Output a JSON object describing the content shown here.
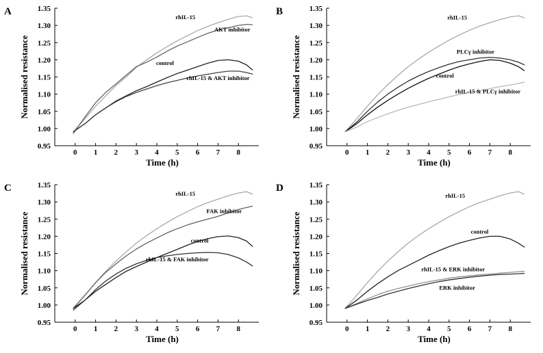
{
  "chart_data": [
    {
      "type": "line",
      "panel": "A",
      "xlabel": "Time (h)",
      "ylabel": "Normalised resistance",
      "xticks": [
        0,
        1,
        2,
        3,
        4,
        5,
        6,
        7,
        8
      ],
      "yticks": [
        "0.95",
        "1.00",
        "1.05",
        "1.10",
        "1.15",
        "1.20",
        "1.25",
        "1.30",
        "1.35"
      ],
      "xlim": [
        -1,
        9
      ],
      "ylim": [
        0.95,
        1.35
      ],
      "grid": false,
      "series": [
        {
          "name": "rhIL-15",
          "color": "#a8a8a8",
          "label_at": [
            5.4,
            1.318
          ],
          "x": [
            -0.1,
            0.5,
            1,
            1.5,
            2,
            2.5,
            3,
            3.5,
            4,
            4.5,
            5,
            5.5,
            6,
            6.5,
            7,
            7.5,
            8,
            8.4,
            8.7
          ],
          "y": [
            0.99,
            1.03,
            1.065,
            1.095,
            1.125,
            1.15,
            1.178,
            1.2,
            1.22,
            1.238,
            1.255,
            1.27,
            1.285,
            1.297,
            1.308,
            1.318,
            1.326,
            1.328,
            1.322
          ]
        },
        {
          "name": "AKT inhibitor",
          "color": "#606060",
          "label_at": [
            7.7,
            1.282
          ],
          "x": [
            -0.1,
            0.5,
            1,
            1.5,
            2,
            2.5,
            3,
            3.5,
            4,
            4.5,
            5,
            5.5,
            6,
            6.5,
            7,
            7.5,
            8,
            8.4,
            8.7
          ],
          "y": [
            0.985,
            1.035,
            1.075,
            1.105,
            1.13,
            1.155,
            1.18,
            1.193,
            1.208,
            1.225,
            1.24,
            1.252,
            1.265,
            1.277,
            1.287,
            1.293,
            1.3,
            1.303,
            1.302
          ]
        },
        {
          "name": "control",
          "color": "#202020",
          "label_at": [
            4.4,
            1.185
          ],
          "x": [
            -0.1,
            0.5,
            1,
            1.5,
            2,
            2.5,
            3,
            3.5,
            4,
            4.5,
            5,
            5.5,
            6,
            6.5,
            7,
            7.5,
            8,
            8.4,
            8.7
          ],
          "y": [
            0.99,
            1.015,
            1.04,
            1.06,
            1.08,
            1.095,
            1.11,
            1.122,
            1.135,
            1.148,
            1.16,
            1.17,
            1.18,
            1.19,
            1.198,
            1.2,
            1.196,
            1.185,
            1.17
          ]
        },
        {
          "name": "rhIL-15 & AKT inhibitor",
          "color": "#404040",
          "label_at": [
            7.0,
            1.141
          ],
          "x": [
            -0.1,
            0.5,
            1,
            1.5,
            2,
            2.5,
            3,
            3.5,
            4,
            4.5,
            5,
            5.5,
            6,
            6.5,
            7,
            7.5,
            8,
            8.4,
            8.7
          ],
          "y": [
            0.99,
            1.015,
            1.04,
            1.06,
            1.078,
            1.093,
            1.105,
            1.115,
            1.125,
            1.133,
            1.14,
            1.147,
            1.153,
            1.158,
            1.163,
            1.167,
            1.167,
            1.163,
            1.158
          ]
        }
      ]
    },
    {
      "type": "line",
      "panel": "B",
      "xlabel": "Time (h)",
      "ylabel": "Normalised resistance",
      "xticks": [
        0,
        1,
        2,
        3,
        4,
        5,
        6,
        7,
        8
      ],
      "yticks": [
        "0.95",
        "1.00",
        "1.05",
        "1.10",
        "1.15",
        "1.20",
        "1.25",
        "1.30",
        "1.35"
      ],
      "xlim": [
        -1,
        9
      ],
      "ylim": [
        0.95,
        1.35
      ],
      "grid": false,
      "series": [
        {
          "name": "rhIL-15",
          "color": "#a8a8a8",
          "label_at": [
            5.4,
            1.317
          ],
          "x": [
            -0.1,
            0.5,
            1,
            1.5,
            2,
            2.5,
            3,
            3.5,
            4,
            4.5,
            5,
            5.5,
            6,
            6.5,
            7,
            7.5,
            8,
            8.4,
            8.7
          ],
          "y": [
            0.99,
            1.03,
            1.065,
            1.098,
            1.128,
            1.155,
            1.18,
            1.202,
            1.222,
            1.24,
            1.257,
            1.272,
            1.286,
            1.298,
            1.308,
            1.317,
            1.325,
            1.328,
            1.322
          ]
        },
        {
          "name": "PLCγ inhibitor",
          "color": "#303030",
          "label_at": [
            6.3,
            1.218
          ],
          "x": [
            -0.1,
            0.5,
            1,
            1.5,
            2,
            2.5,
            3,
            3.5,
            4,
            4.5,
            5,
            5.5,
            6,
            6.5,
            7,
            7.5,
            8,
            8.4,
            8.7
          ],
          "y": [
            0.99,
            1.02,
            1.05,
            1.077,
            1.1,
            1.12,
            1.138,
            1.153,
            1.166,
            1.177,
            1.187,
            1.195,
            1.2,
            1.205,
            1.207,
            1.205,
            1.2,
            1.193,
            1.185
          ]
        },
        {
          "name": "control",
          "color": "#101010",
          "label_at": [
            4.8,
            1.148
          ],
          "x": [
            -0.1,
            0.5,
            1,
            1.5,
            2,
            2.5,
            3,
            3.5,
            4,
            4.5,
            5,
            5.5,
            6,
            6.5,
            7,
            7.5,
            8,
            8.4,
            8.7
          ],
          "y": [
            0.99,
            1.015,
            1.04,
            1.062,
            1.082,
            1.1,
            1.117,
            1.132,
            1.146,
            1.158,
            1.17,
            1.18,
            1.188,
            1.195,
            1.2,
            1.198,
            1.19,
            1.18,
            1.168
          ]
        },
        {
          "name": "rhIL-15 & PLCγ inhibitor",
          "color": "#b8b8b8",
          "label_at": [
            6.9,
            1.102
          ],
          "x": [
            -0.1,
            0.5,
            1,
            1.5,
            2,
            2.5,
            3,
            3.5,
            4,
            4.5,
            5,
            5.5,
            6,
            6.5,
            7,
            7.5,
            8,
            8.4,
            8.7
          ],
          "y": [
            0.99,
            1.005,
            1.02,
            1.032,
            1.043,
            1.053,
            1.062,
            1.07,
            1.078,
            1.085,
            1.092,
            1.099,
            1.105,
            1.11,
            1.116,
            1.122,
            1.127,
            1.131,
            1.135
          ]
        }
      ]
    },
    {
      "type": "line",
      "panel": "C",
      "xlabel": "Time (h)",
      "ylabel": "Normalised resistance",
      "xticks": [
        0,
        1,
        2,
        3,
        4,
        5,
        6,
        7,
        8
      ],
      "yticks": [
        "0.95",
        "1.00",
        "1.05",
        "1.10",
        "1.15",
        "1.20",
        "1.25",
        "1.30",
        "1.35"
      ],
      "xlim": [
        -1,
        9
      ],
      "ylim": [
        0.95,
        1.35
      ],
      "grid": false,
      "series": [
        {
          "name": "rhIL-15",
          "color": "#a8a8a8",
          "label_at": [
            5.4,
            1.318
          ],
          "x": [
            -0.1,
            0.5,
            1,
            1.5,
            2,
            2.5,
            3,
            3.5,
            4,
            4.5,
            5,
            5.5,
            6,
            6.5,
            7,
            7.5,
            8,
            8.4,
            8.7
          ],
          "y": [
            0.99,
            1.03,
            1.065,
            1.098,
            1.128,
            1.155,
            1.18,
            1.202,
            1.222,
            1.24,
            1.257,
            1.272,
            1.286,
            1.298,
            1.308,
            1.318,
            1.326,
            1.33,
            1.322
          ]
        },
        {
          "name": "FAK inhibitor",
          "color": "#606060",
          "label_at": [
            7.3,
            1.267
          ],
          "x": [
            -0.1,
            0.5,
            1,
            1.5,
            2,
            2.5,
            3,
            3.5,
            4,
            4.5,
            5,
            5.5,
            6,
            6.5,
            7,
            7.5,
            8,
            8.4,
            8.7
          ],
          "y": [
            0.99,
            1.03,
            1.065,
            1.095,
            1.12,
            1.143,
            1.163,
            1.18,
            1.195,
            1.21,
            1.222,
            1.233,
            1.242,
            1.25,
            1.258,
            1.268,
            1.278,
            1.284,
            1.288
          ]
        },
        {
          "name": "control",
          "color": "#202020",
          "label_at": [
            6.1,
            1.182
          ],
          "x": [
            -0.1,
            0.5,
            1,
            1.5,
            2,
            2.5,
            3,
            3.5,
            4,
            4.5,
            5,
            5.5,
            6,
            6.5,
            7,
            7.5,
            8,
            8.4,
            8.7
          ],
          "y": [
            0.99,
            1.015,
            1.04,
            1.06,
            1.08,
            1.098,
            1.112,
            1.125,
            1.138,
            1.15,
            1.162,
            1.174,
            1.185,
            1.193,
            1.199,
            1.201,
            1.196,
            1.186,
            1.17
          ]
        },
        {
          "name": "rhIL-15 & FAK inhibitor",
          "color": "#303030",
          "label_at": [
            5.0,
            1.127
          ],
          "x": [
            -0.1,
            0.5,
            1,
            1.5,
            2,
            2.5,
            3,
            3.5,
            4,
            4.5,
            5,
            5.5,
            6,
            6.5,
            7,
            7.5,
            8,
            8.4,
            8.7
          ],
          "y": [
            0.985,
            1.015,
            1.045,
            1.07,
            1.09,
            1.107,
            1.12,
            1.13,
            1.138,
            1.143,
            1.147,
            1.15,
            1.152,
            1.153,
            1.152,
            1.147,
            1.137,
            1.125,
            1.113
          ]
        }
      ]
    },
    {
      "type": "line",
      "panel": "D",
      "xlabel": "Time (h)",
      "ylabel": "Normalised resistance",
      "xticks": [
        0,
        1,
        2,
        3,
        4,
        5,
        6,
        7,
        8
      ],
      "yticks": [
        "0.95",
        "1.00",
        "1.05",
        "1.10",
        "1.15",
        "1.20",
        "1.25",
        "1.30",
        "1.35"
      ],
      "xlim": [
        -1,
        9
      ],
      "ylim": [
        0.95,
        1.35
      ],
      "grid": false,
      "series": [
        {
          "name": "rhIL-15",
          "color": "#a8a8a8",
          "label_at": [
            5.3,
            1.312
          ],
          "x": [
            -0.1,
            0.5,
            1,
            1.5,
            2,
            2.5,
            3,
            3.5,
            4,
            4.5,
            5,
            5.5,
            6,
            6.5,
            7,
            7.5,
            8,
            8.4,
            8.7
          ],
          "y": [
            0.99,
            1.03,
            1.065,
            1.098,
            1.128,
            1.155,
            1.18,
            1.202,
            1.222,
            1.24,
            1.257,
            1.272,
            1.286,
            1.298,
            1.308,
            1.318,
            1.326,
            1.33,
            1.322
          ]
        },
        {
          "name": "control",
          "color": "#202020",
          "label_at": [
            6.5,
            1.208
          ],
          "x": [
            -0.1,
            0.5,
            1,
            1.5,
            2,
            2.5,
            3,
            3.5,
            4,
            4.5,
            5,
            5.5,
            6,
            6.5,
            7,
            7.5,
            8,
            8.4,
            8.7
          ],
          "y": [
            0.99,
            1.015,
            1.04,
            1.062,
            1.082,
            1.1,
            1.115,
            1.13,
            1.145,
            1.158,
            1.17,
            1.18,
            1.188,
            1.195,
            1.2,
            1.2,
            1.192,
            1.18,
            1.168
          ]
        },
        {
          "name": "rhIL-15 & ERK inhibitor",
          "color": "#909090",
          "label_at": [
            5.2,
            1.098
          ],
          "x": [
            -0.1,
            0.5,
            1,
            1.5,
            2,
            2.5,
            3,
            3.5,
            4,
            4.5,
            5,
            5.5,
            6,
            6.5,
            7,
            7.5,
            8,
            8.4,
            8.7
          ],
          "y": [
            0.99,
            1.005,
            1.018,
            1.03,
            1.04,
            1.048,
            1.055,
            1.062,
            1.068,
            1.073,
            1.078,
            1.082,
            1.085,
            1.088,
            1.09,
            1.093,
            1.095,
            1.097,
            1.098
          ]
        },
        {
          "name": "ERK inhibitor",
          "color": "#303030",
          "label_at": [
            5.4,
            1.045
          ],
          "x": [
            -0.1,
            0.5,
            1,
            1.5,
            2,
            2.5,
            3,
            3.5,
            4,
            4.5,
            5,
            5.5,
            6,
            6.5,
            7,
            7.5,
            8,
            8.4,
            8.7
          ],
          "y": [
            0.99,
            1.003,
            1.013,
            1.022,
            1.032,
            1.04,
            1.048,
            1.055,
            1.062,
            1.068,
            1.073,
            1.077,
            1.081,
            1.084,
            1.087,
            1.089,
            1.09,
            1.091,
            1.092
          ]
        }
      ]
    }
  ]
}
